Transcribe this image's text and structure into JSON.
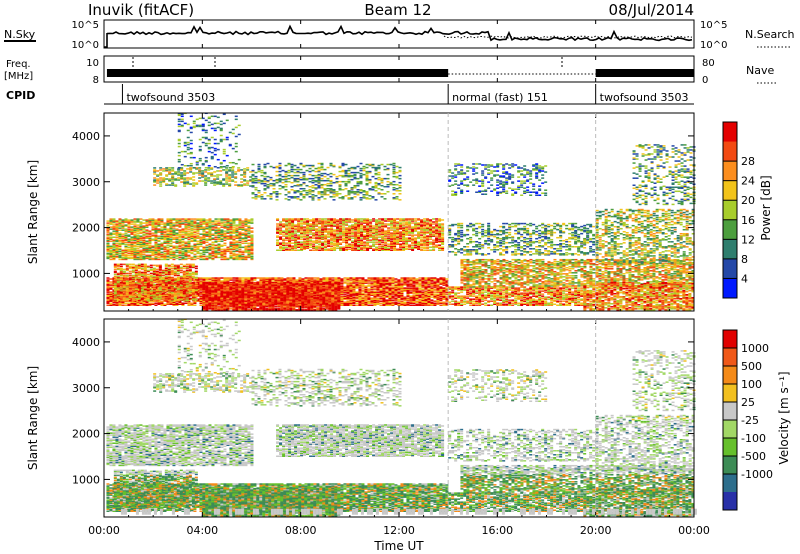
{
  "header": {
    "station": "Inuvik (fitACF)",
    "beam": "Beam 12",
    "date": "08/Jul/2014"
  },
  "noise_panel": {
    "left_label": "N.Sky",
    "right_label": "N.Search",
    "left_ticks": [
      "10^5",
      "10^0"
    ],
    "right_ticks": [
      "10^5",
      "10^0"
    ]
  },
  "freq_panel": {
    "left_label_1": "Freq.",
    "left_label_2": "[MHz]",
    "right_label": "Nave",
    "left_ticks": [
      "10",
      "8"
    ],
    "right_ticks": [
      "80",
      "0"
    ]
  },
  "cpid": {
    "label": "CPID",
    "segments": [
      {
        "name": "twofsound 3503",
        "start_h": 0.75,
        "end_h": 14.0
      },
      {
        "name": "normal (fast) 151",
        "start_h": 14.0,
        "end_h": 20.0
      },
      {
        "name": "twofsound 3503",
        "start_h": 20.0,
        "end_h": 24.0
      }
    ]
  },
  "x_axis": {
    "label": "Time UT",
    "ticks": [
      "00:00",
      "04:00",
      "08:00",
      "12:00",
      "16:00",
      "20:00",
      "00:00"
    ]
  },
  "power_panel": {
    "ylabel": "Slant Range [km]",
    "yticks": [
      "1000",
      "2000",
      "3000",
      "4000"
    ],
    "colorbar_label": "Power [dB]",
    "colorbar_ticks": [
      "4",
      "8",
      "12",
      "16",
      "20",
      "24",
      "28"
    ],
    "colors": [
      "#0019ff",
      "#2448a8",
      "#2f7e6e",
      "#4c9e3e",
      "#a8cd2c",
      "#f2c31a",
      "#fc8e1e",
      "#f34a12",
      "#e40000"
    ]
  },
  "velocity_panel": {
    "ylabel": "Slant Range [km]",
    "yticks": [
      "1000",
      "2000",
      "3000",
      "4000"
    ],
    "colorbar_label": "Velocity [m s⁻¹]",
    "colorbar_ticks": [
      "1000",
      "500",
      "100",
      "25",
      "-25",
      "-100",
      "-500",
      "-1000"
    ],
    "colors": [
      "#2830a8",
      "#2d6e8c",
      "#3d8c56",
      "#66c02c",
      "#a2d866",
      "#c8c8c8",
      "#f2c020",
      "#f48a18",
      "#f05818",
      "#e00000"
    ]
  },
  "chart_data": [
    {
      "type": "heatmap",
      "title": "Power",
      "x_range_h": [
        0,
        24
      ],
      "y_range_km": [
        180,
        4500
      ],
      "z_label": "Power [dB]",
      "z_range": [
        0,
        30
      ]
    },
    {
      "type": "heatmap",
      "title": "Velocity",
      "x_range_h": [
        0,
        24
      ],
      "y_range_km": [
        180,
        4500
      ],
      "z_label": "Velocity [m s⁻¹]",
      "z_range": [
        -1000,
        1000
      ]
    }
  ]
}
